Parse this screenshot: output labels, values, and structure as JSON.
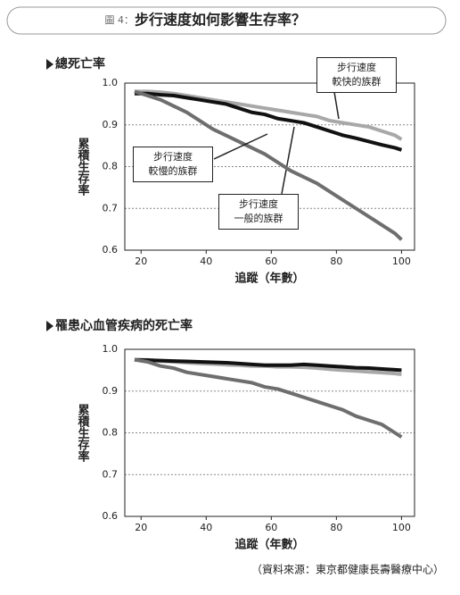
{
  "figure_label": "圖 4：",
  "title": "步行速度如何影響生存率？",
  "source": "（資料來源：東京都健康長壽醫療中心）",
  "chart_data": [
    {
      "type": "line",
      "title": "總死亡率",
      "y_label": "累積生存率",
      "x_label": "追蹤（年數）",
      "xlim": [
        15,
        104
      ],
      "ylim": [
        0.6,
        1.0
      ],
      "xticks": [
        20,
        40,
        60,
        80,
        100
      ],
      "yticks": [
        0.6,
        0.7,
        0.8,
        0.9,
        {
          "value": 1.0,
          "label": "1.0"
        }
      ],
      "grid": true,
      "x": [
        18,
        22,
        26,
        30,
        34,
        38,
        42,
        46,
        50,
        54,
        58,
        62,
        66,
        70,
        74,
        78,
        82,
        86,
        90,
        94,
        98,
        100
      ],
      "series": [
        {
          "name": "步行速度\n較快的族群",
          "color": "#a8a8a8",
          "values": [
            0.98,
            0.98,
            0.978,
            0.975,
            0.97,
            0.965,
            0.96,
            0.955,
            0.95,
            0.945,
            0.94,
            0.935,
            0.93,
            0.925,
            0.92,
            0.91,
            0.905,
            0.9,
            0.895,
            0.885,
            0.875,
            0.865
          ]
        },
        {
          "name": "步行速度\n一般的族群",
          "color": "#111111",
          "values": [
            0.975,
            0.975,
            0.972,
            0.97,
            0.965,
            0.96,
            0.955,
            0.95,
            0.94,
            0.93,
            0.925,
            0.915,
            0.91,
            0.905,
            0.895,
            0.885,
            0.875,
            0.868,
            0.86,
            0.852,
            0.845,
            0.84
          ]
        },
        {
          "name": "步行速度\n較慢的族群",
          "color": "#6e6e6e",
          "values": [
            0.98,
            0.97,
            0.96,
            0.945,
            0.93,
            0.91,
            0.89,
            0.875,
            0.86,
            0.845,
            0.83,
            0.81,
            0.79,
            0.775,
            0.76,
            0.74,
            0.72,
            0.7,
            0.68,
            0.66,
            0.64,
            0.625
          ]
        }
      ]
    },
    {
      "type": "line",
      "title": "罹患心血管疾病的死亡率",
      "y_label": "累積生存率",
      "x_label": "追蹤（年數）",
      "xlim": [
        15,
        104
      ],
      "ylim": [
        0.6,
        1.0
      ],
      "xticks": [
        20,
        40,
        60,
        80,
        100
      ],
      "yticks": [
        0.6,
        0.7,
        0.8,
        0.9,
        {
          "value": 1.0,
          "label": "1.0"
        }
      ],
      "grid": true,
      "x": [
        18,
        22,
        26,
        30,
        34,
        38,
        42,
        46,
        50,
        54,
        58,
        62,
        66,
        70,
        74,
        78,
        82,
        86,
        90,
        94,
        98,
        100
      ],
      "series": [
        {
          "color": "#a8a8a8",
          "values": [
            0.975,
            0.975,
            0.972,
            0.97,
            0.968,
            0.966,
            0.965,
            0.963,
            0.962,
            0.96,
            0.96,
            0.958,
            0.958,
            0.957,
            0.955,
            0.952,
            0.95,
            0.948,
            0.946,
            0.944,
            0.942,
            0.94
          ]
        },
        {
          "color": "#111111",
          "values": [
            0.975,
            0.974,
            0.973,
            0.972,
            0.971,
            0.97,
            0.969,
            0.968,
            0.966,
            0.964,
            0.962,
            0.962,
            0.962,
            0.964,
            0.962,
            0.96,
            0.958,
            0.956,
            0.955,
            0.953,
            0.951,
            0.95
          ]
        },
        {
          "color": "#6e6e6e",
          "values": [
            0.975,
            0.97,
            0.96,
            0.955,
            0.945,
            0.94,
            0.935,
            0.93,
            0.925,
            0.92,
            0.91,
            0.905,
            0.895,
            0.885,
            0.875,
            0.865,
            0.855,
            0.84,
            0.83,
            0.82,
            0.8,
            0.79
          ]
        }
      ]
    }
  ]
}
